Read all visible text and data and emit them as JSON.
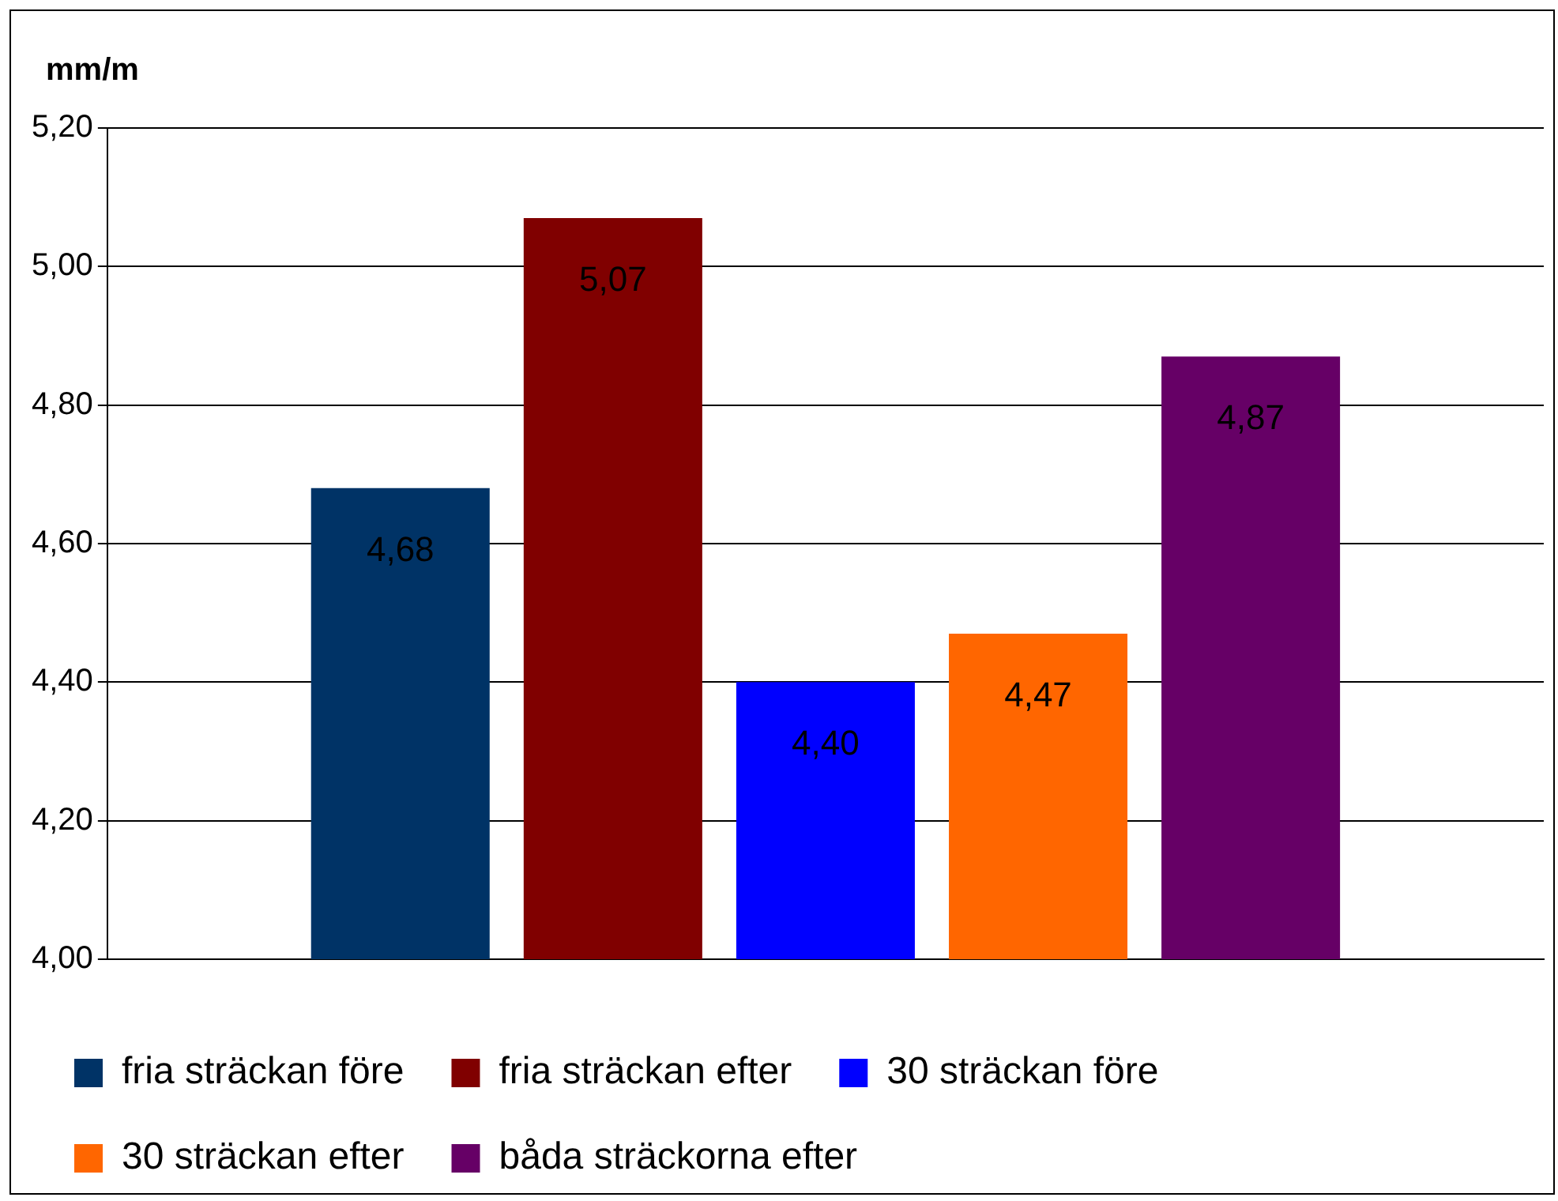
{
  "chart_data": {
    "type": "bar",
    "ylabel": "mm/m",
    "categories": [
      null
    ],
    "series": [
      {
        "name": "fria sträckan före",
        "color": "#003366",
        "values": [
          4.68
        ],
        "value_labels": [
          "4,68"
        ]
      },
      {
        "name": "fria sträckan efter",
        "color": "#800000",
        "values": [
          5.07
        ],
        "value_labels": [
          "5,07"
        ]
      },
      {
        "name": "30 sträckan före",
        "color": "#0000ff",
        "values": [
          4.4
        ],
        "value_labels": [
          "4,40"
        ]
      },
      {
        "name": "30 sträckan efter",
        "color": "#ff6600",
        "values": [
          4.47
        ],
        "value_labels": [
          "4,47"
        ]
      },
      {
        "name": "båda sträckorna efter",
        "color": "#660066",
        "values": [
          4.87
        ],
        "value_labels": [
          "4,87"
        ]
      }
    ],
    "ylim": [
      4.0,
      5.2
    ],
    "yticks": [
      {
        "value": 4.0,
        "label": "4,00"
      },
      {
        "value": 4.2,
        "label": "4,20"
      },
      {
        "value": 4.4,
        "label": "4,40"
      },
      {
        "value": 4.6,
        "label": "4,60"
      },
      {
        "value": 4.8,
        "label": "4,80"
      },
      {
        "value": 5.0,
        "label": "5,00"
      },
      {
        "value": 5.2,
        "label": "5,20"
      }
    ],
    "grid": "y",
    "legend": "bottom"
  }
}
